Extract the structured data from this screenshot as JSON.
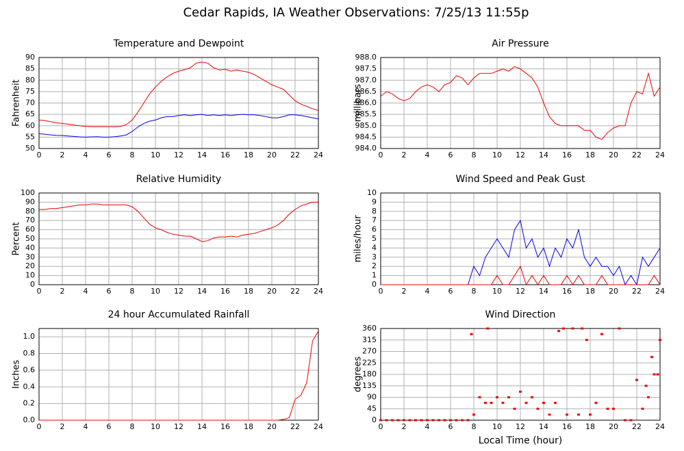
{
  "title": "Cedar Rapids, IA Weather Observations: 7/25/13 11:55p",
  "xlabel": "Local Time (hour)",
  "chart_data": [
    {
      "type": "line",
      "title": "Temperature and Dewpoint",
      "ylabel": "Fahrenheit",
      "x": [
        0,
        0.5,
        1,
        1.5,
        2,
        2.5,
        3,
        3.5,
        4,
        4.5,
        5,
        5.5,
        6,
        6.5,
        7,
        7.5,
        8,
        8.5,
        9,
        9.5,
        10,
        10.5,
        11,
        11.5,
        12,
        12.5,
        13,
        13.5,
        14,
        14.5,
        15,
        15.5,
        16,
        16.5,
        17,
        17.5,
        18,
        18.5,
        19,
        19.5,
        20,
        20.5,
        21,
        21.5,
        22,
        22.5,
        23,
        23.5,
        24
      ],
      "series": [
        {
          "color": "#ee0000",
          "values": [
            62.5,
            62.3,
            61.8,
            61.3,
            61,
            60.7,
            60.3,
            60,
            59.7,
            59.6,
            59.6,
            59.6,
            59.6,
            59.6,
            59.7,
            60.5,
            62.5,
            66,
            70,
            74,
            77,
            79.5,
            81.5,
            83,
            84,
            84.7,
            85.5,
            87.5,
            88,
            87.5,
            85.5,
            84.5,
            84.8,
            84,
            84.5,
            84,
            83.5,
            82.5,
            81,
            79.5,
            78,
            77,
            76,
            73.5,
            71,
            69.5,
            68.5,
            67.5,
            66.7
          ]
        },
        {
          "color": "#0000ee",
          "values": [
            56.5,
            56.3,
            56,
            55.8,
            55.7,
            55.5,
            55.3,
            55.1,
            55,
            55.1,
            55.2,
            55,
            55,
            55.2,
            55.5,
            56,
            57.5,
            59.5,
            61,
            62,
            62.5,
            63.5,
            64,
            64,
            64.5,
            64.8,
            64.5,
            64.8,
            65,
            64.5,
            64.8,
            64.5,
            64.8,
            64.5,
            64.8,
            65,
            64.8,
            64.8,
            64.5,
            64,
            63.5,
            63.5,
            64,
            64.8,
            64.8,
            64.5,
            64,
            63.5,
            63
          ]
        }
      ],
      "xlim": [
        0,
        24
      ],
      "xticks": [
        0,
        2,
        4,
        6,
        8,
        10,
        12,
        14,
        16,
        18,
        20,
        22,
        24
      ],
      "ylim": [
        50,
        90
      ],
      "yticks": [
        50,
        55,
        60,
        65,
        70,
        75,
        80,
        85,
        90
      ],
      "grid": true
    },
    {
      "type": "line",
      "title": "Air Pressure",
      "ylabel": "millibars",
      "x": [
        0,
        0.5,
        1,
        1.5,
        2,
        2.5,
        3,
        3.5,
        4,
        4.5,
        5,
        5.5,
        6,
        6.5,
        7,
        7.5,
        8,
        8.5,
        9,
        9.5,
        10,
        10.5,
        11,
        11.5,
        12,
        12.5,
        13,
        13.5,
        14,
        14.5,
        15,
        15.5,
        16,
        16.5,
        17,
        17.5,
        18,
        18.5,
        19,
        19.5,
        20,
        20.5,
        21,
        21.5,
        22,
        22.5,
        23,
        23.5,
        24
      ],
      "series": [
        {
          "color": "#ee0000",
          "values": [
            986.3,
            986.5,
            986.4,
            986.2,
            986.1,
            986.2,
            986.5,
            986.7,
            986.8,
            986.7,
            986.5,
            986.8,
            986.9,
            987.2,
            987.1,
            986.8,
            987.1,
            987.3,
            987.3,
            987.3,
            987.4,
            987.5,
            987.4,
            987.6,
            987.5,
            987.3,
            987.1,
            986.7,
            986.0,
            985.4,
            985.1,
            985.0,
            985.0,
            985.0,
            985.0,
            984.8,
            984.8,
            984.5,
            984.4,
            984.7,
            984.9,
            985.0,
            985.0,
            986.0,
            986.5,
            986.4,
            987.3,
            986.3,
            986.7
          ]
        }
      ],
      "xlim": [
        0,
        24
      ],
      "xticks": [
        0,
        2,
        4,
        6,
        8,
        10,
        12,
        14,
        16,
        18,
        20,
        22,
        24
      ],
      "ylim": [
        984,
        988
      ],
      "yticks": [
        {
          "value": 984,
          "label": "984.0"
        },
        {
          "value": 984.5,
          "label": "984.5"
        },
        {
          "value": 985,
          "label": "985.0"
        },
        {
          "value": 985.5,
          "label": "985.5"
        },
        {
          "value": 986,
          "label": "986.0"
        },
        {
          "value": 986.5,
          "label": "986.5"
        },
        {
          "value": 987,
          "label": "987.0"
        },
        {
          "value": 987.5,
          "label": "987.5"
        },
        {
          "value": 988,
          "label": "988.0"
        }
      ],
      "grid": true
    },
    {
      "type": "line",
      "title": "Relative Humidity",
      "ylabel": "Percent",
      "x": [
        0,
        0.5,
        1,
        1.5,
        2,
        2.5,
        3,
        3.5,
        4,
        4.5,
        5,
        5.5,
        6,
        6.5,
        7,
        7.5,
        8,
        8.5,
        9,
        9.5,
        10,
        10.5,
        11,
        11.5,
        12,
        12.5,
        13,
        13.5,
        14,
        14.5,
        15,
        15.5,
        16,
        16.5,
        17,
        17.5,
        18,
        18.5,
        19,
        19.5,
        20,
        20.5,
        21,
        21.5,
        22,
        22.5,
        23,
        23.5,
        24
      ],
      "series": [
        {
          "color": "#ee0000",
          "values": [
            82,
            82,
            83,
            83,
            84,
            85,
            86,
            87,
            87,
            88,
            88,
            87,
            87,
            87,
            87,
            87,
            85,
            80,
            73,
            66,
            62,
            60,
            57,
            55,
            54,
            53,
            53,
            50,
            47,
            48,
            51,
            52,
            52,
            53,
            52,
            54,
            55,
            56,
            58,
            60,
            62,
            65,
            70,
            77,
            82,
            86,
            88,
            90,
            90
          ]
        }
      ],
      "xlim": [
        0,
        24
      ],
      "xticks": [
        0,
        2,
        4,
        6,
        8,
        10,
        12,
        14,
        16,
        18,
        20,
        22,
        24
      ],
      "ylim": [
        0,
        100
      ],
      "yticks": [
        0,
        10,
        20,
        30,
        40,
        50,
        60,
        70,
        80,
        90,
        100
      ],
      "grid": true
    },
    {
      "type": "line",
      "title": "Wind Speed and Peak Gust",
      "ylabel": "miles/hour",
      "x": [
        0,
        0.5,
        1,
        1.5,
        2,
        2.5,
        3,
        3.5,
        4,
        4.5,
        5,
        5.5,
        6,
        6.5,
        7,
        7.5,
        8,
        8.5,
        9,
        9.5,
        10,
        10.5,
        11,
        11.5,
        12,
        12.5,
        13,
        13.5,
        14,
        14.5,
        15,
        15.5,
        16,
        16.5,
        17,
        17.5,
        18,
        18.5,
        19,
        19.5,
        20,
        20.5,
        21,
        21.5,
        22,
        22.5,
        23,
        23.5,
        24
      ],
      "series": [
        {
          "color": "#0000ee",
          "values": [
            0,
            0,
            0,
            0,
            0,
            0,
            0,
            0,
            0,
            0,
            0,
            0,
            0,
            0,
            0,
            0,
            2,
            1,
            3,
            4,
            5,
            4,
            3,
            6,
            7,
            4,
            5,
            3,
            4,
            2,
            4,
            3,
            5,
            4,
            6,
            3,
            2,
            3,
            2,
            2,
            1,
            2,
            0,
            1,
            0,
            3,
            2,
            3,
            4
          ]
        },
        {
          "color": "#ee0000",
          "values": [
            0,
            0,
            0,
            0,
            0,
            0,
            0,
            0,
            0,
            0,
            0,
            0,
            0,
            0,
            0,
            0,
            0,
            0,
            0,
            0,
            1,
            0,
            0,
            1,
            2,
            0,
            1,
            0,
            1,
            0,
            0,
            0,
            1,
            0,
            1,
            0,
            0,
            0,
            1,
            0,
            0,
            0,
            0,
            0,
            0,
            0,
            0,
            1,
            0
          ]
        }
      ],
      "xlim": [
        0,
        24
      ],
      "xticks": [
        0,
        2,
        4,
        6,
        8,
        10,
        12,
        14,
        16,
        18,
        20,
        22,
        24
      ],
      "ylim": [
        0,
        10
      ],
      "yticks": [
        0,
        1,
        2,
        3,
        4,
        5,
        6,
        7,
        8,
        9,
        10
      ],
      "grid": true
    },
    {
      "type": "line",
      "title": "24 hour Accumulated Rainfall",
      "ylabel": "Inches",
      "x": [
        0,
        0.5,
        1,
        1.5,
        2,
        2.5,
        3,
        3.5,
        4,
        4.5,
        5,
        5.5,
        6,
        6.5,
        7,
        7.5,
        8,
        8.5,
        9,
        9.5,
        10,
        10.5,
        11,
        11.5,
        12,
        12.5,
        13,
        13.5,
        14,
        14.5,
        15,
        15.5,
        16,
        16.5,
        17,
        17.5,
        18,
        18.5,
        19,
        19.5,
        20,
        20.5,
        21,
        21.5,
        22,
        22.5,
        23,
        23.5,
        24
      ],
      "series": [
        {
          "color": "#ee0000",
          "values": [
            0,
            0,
            0,
            0,
            0,
            0,
            0,
            0,
            0,
            0,
            0,
            0,
            0,
            0,
            0,
            0,
            0,
            0,
            0,
            0,
            0,
            0,
            0,
            0,
            0,
            0,
            0,
            0,
            0,
            0,
            0,
            0,
            0,
            0,
            0,
            0,
            0,
            0,
            0,
            0,
            0,
            0,
            0.01,
            0.03,
            0.25,
            0.3,
            0.45,
            0.95,
            1.07
          ]
        }
      ],
      "xlim": [
        0,
        24
      ],
      "xticks": [
        0,
        2,
        4,
        6,
        8,
        10,
        12,
        14,
        16,
        18,
        20,
        22,
        24
      ],
      "ylim": [
        0,
        1.1
      ],
      "yticks": [
        {
          "value": 0,
          "label": "0.0"
        },
        0.2,
        0.4,
        0.6,
        0.8,
        {
          "value": 1,
          "label": "1.0"
        }
      ],
      "grid": true
    },
    {
      "type": "scatter",
      "title": "Wind Direction",
      "ylabel": "degrees",
      "color": "#ee0000",
      "x": [
        0,
        0.5,
        1,
        1.5,
        2,
        2.5,
        3,
        3.5,
        4,
        4.5,
        5,
        5.5,
        6,
        6.5,
        7,
        7.5,
        7.8,
        8,
        8.5,
        9,
        9.2,
        9.5,
        10,
        10.5,
        11,
        11.5,
        12,
        12.5,
        13,
        13.5,
        14,
        14.5,
        15,
        15.3,
        15.7,
        16,
        16.5,
        17,
        17.3,
        17.7,
        18,
        18.5,
        19,
        19.5,
        20,
        20.5,
        21,
        21.5,
        22,
        22.5,
        22.8,
        23,
        23.3,
        23.5,
        23.8,
        24
      ],
      "y": [
        0,
        0,
        0,
        0,
        0,
        0,
        0,
        0,
        0,
        0,
        0,
        0,
        0,
        0,
        0,
        0,
        338,
        22,
        90,
        68,
        360,
        68,
        90,
        68,
        90,
        45,
        112,
        68,
        90,
        45,
        68,
        22,
        68,
        350,
        360,
        22,
        360,
        22,
        360,
        315,
        22,
        68,
        338,
        45,
        45,
        360,
        0,
        0,
        158,
        45,
        135,
        90,
        248,
        180,
        180,
        315
      ],
      "xlim": [
        0,
        24
      ],
      "xticks": [
        0,
        2,
        4,
        6,
        8,
        10,
        12,
        14,
        16,
        18,
        20,
        22,
        24
      ],
      "ylim": [
        0,
        360
      ],
      "yticks": [
        0,
        45,
        90,
        135,
        180,
        225,
        270,
        315,
        360
      ],
      "grid": true
    }
  ]
}
